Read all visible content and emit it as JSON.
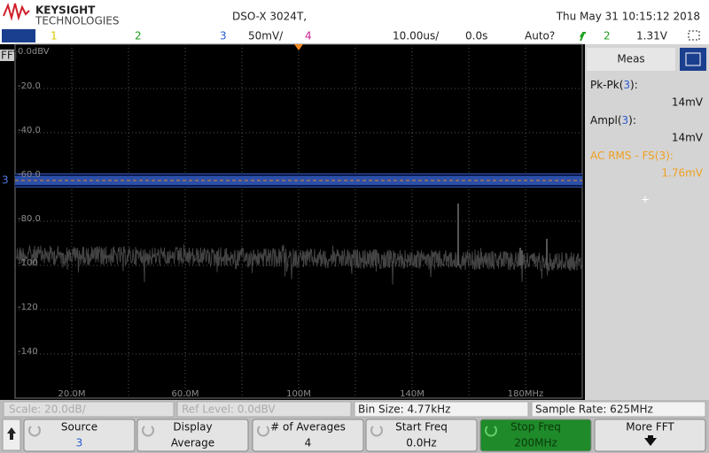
{
  "header": {
    "brand": "KEYSIGHT",
    "brand_sub": "TECHNOLOGIES",
    "model": "DSO-X 3024T,",
    "datetime": "Thu May 31 10:15:12 2018"
  },
  "channel_bar": {
    "ch1": "1",
    "ch2": "2",
    "ch3": "3",
    "ch3_scale": "50mV/",
    "ch4": "4",
    "timebase": "10.00us/",
    "delay": "0.0s",
    "trigger_mode": "Auto?",
    "trigger_source": "2",
    "trigger_level": "1.31V"
  },
  "graticule": {
    "fft_badge": "FFT",
    "channel_marker": "3",
    "y_labels": [
      "0.0dBV",
      "-20.0",
      "-40.0",
      "-60.0",
      "-80.0",
      "-100",
      "-120",
      "-140"
    ],
    "x_labels": [
      "20.0M",
      "60.0M",
      "100M",
      "140M",
      "180MHz"
    ]
  },
  "meas_panel": {
    "title": "Meas",
    "items": [
      {
        "name": "Pk-Pk(",
        "source": "3",
        "suffix": "):",
        "value": "14mV"
      },
      {
        "name": "Ampl(",
        "source": "3",
        "suffix": "):",
        "value": "14mV"
      },
      {
        "name": "AC RMS - FS(",
        "source": "3",
        "suffix": "):",
        "value": "1.76mV"
      }
    ]
  },
  "status_bar": {
    "scale": "Scale: 20.0dB/",
    "ref_level": "Ref Level: 0.0dBV",
    "bin_size": "Bin Size: 4.77kHz",
    "sample_rate": "Sample Rate: 625MHz"
  },
  "softkeys": [
    {
      "label": "Source",
      "value": "3"
    },
    {
      "label": "Display",
      "value": "Average"
    },
    {
      "label": "# of Averages",
      "value": "4"
    },
    {
      "label": "Start Freq",
      "value": "0.0Hz"
    },
    {
      "label": "Stop Freq",
      "value": "200MHz"
    },
    {
      "label": "More FFT"
    }
  ]
}
